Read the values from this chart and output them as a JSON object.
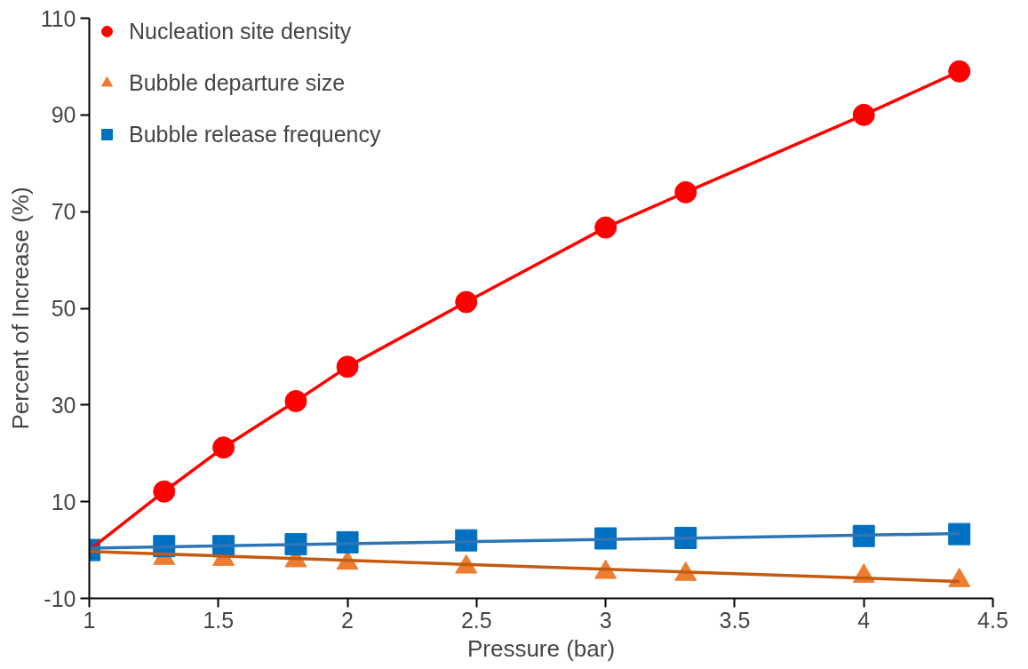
{
  "chart_data": {
    "type": "scatter",
    "xlabel": "Pressure (bar)",
    "ylabel": "Percent of Increase (%)",
    "xlim": [
      1,
      4.5
    ],
    "ylim": [
      -10,
      110
    ],
    "xticks": [
      1,
      1.5,
      2,
      2.5,
      3,
      3.5,
      4,
      4.5
    ],
    "yticks": [
      -10,
      10,
      30,
      50,
      70,
      90,
      110
    ],
    "grid": false,
    "legend": "top left",
    "series": [
      {
        "name": "Nucleation site density",
        "color": "#ff0000",
        "marker": "circle",
        "x": [
          1.29,
          1.52,
          1.8,
          2,
          2.46,
          3,
          3.31,
          4,
          4.37
        ],
        "values": [
          12.1,
          21.2,
          30.8,
          37.9,
          51.3,
          66.7,
          74.0,
          90.0,
          99.0
        ]
      },
      {
        "name": "Bubble departure size",
        "color": "#ed7d31",
        "marker": "triangle",
        "x": [
          1.29,
          1.52,
          1.8,
          2,
          2.46,
          3,
          3.31,
          4,
          4.37
        ],
        "values": [
          -1.7,
          -1.9,
          -2.2,
          -2.7,
          -3.5,
          -4.6,
          -5.0,
          -5.4,
          -6.3
        ]
      },
      {
        "name": "Bubble release frequency",
        "color": "#0070c0",
        "marker": "square",
        "x": [
          1,
          1.29,
          1.52,
          1.8,
          2,
          2.46,
          3,
          3.31,
          4,
          4.37
        ],
        "values": [
          0,
          0.8,
          0.8,
          1.2,
          1.6,
          2.0,
          2.4,
          2.5,
          2.9,
          3.3
        ]
      },
      {
        "type": "line",
        "color": "#ff0000",
        "x": [
          1,
          1.29,
          1.52,
          1.8,
          2,
          2.46,
          3,
          3.31,
          4,
          4.37
        ],
        "values": [
          0,
          12.1,
          21.2,
          30.8,
          37.9,
          51.3,
          66.7,
          74.0,
          90.0,
          99.0
        ]
      },
      {
        "type": "line",
        "color": "#c55a11",
        "x": [
          1,
          4.37
        ],
        "values": [
          -0.3,
          -6.5
        ]
      },
      {
        "type": "line",
        "color": "#2e75b6",
        "x": [
          1,
          4.37
        ],
        "values": [
          0.4,
          3.4
        ]
      }
    ]
  }
}
